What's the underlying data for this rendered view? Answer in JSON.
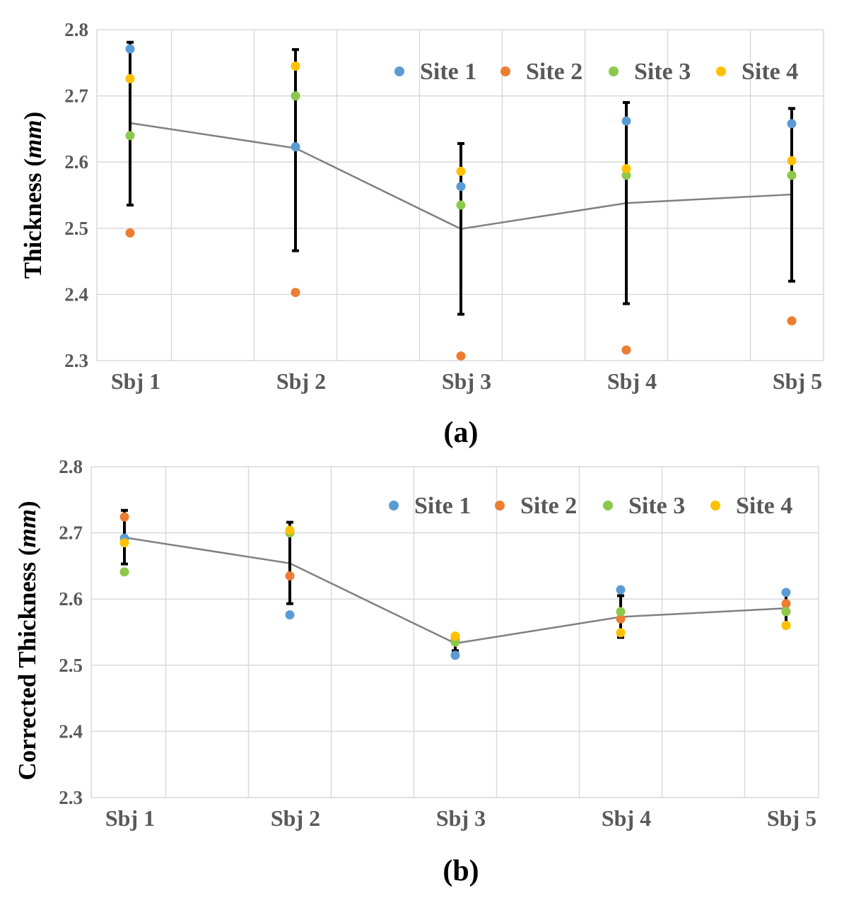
{
  "colors": {
    "site1": "#5B9BD5",
    "site2": "#ED7D31",
    "site3": "#8CC84B",
    "site4": "#FFC000",
    "mean_line": "#808080",
    "error_bar": "#000000",
    "grid": "#D9D9D9"
  },
  "chart_data": [
    {
      "type": "scatter",
      "panel_label": "(a)",
      "title": "",
      "xlabel": "",
      "ylabel": "Thickness",
      "ylabel_unit": "mm",
      "ylim": [
        2.3,
        2.8
      ],
      "yticks": [
        "2.3",
        "2.4",
        "2.5",
        "2.6",
        "2.7",
        "2.8"
      ],
      "categories": [
        "Sbj 1",
        "Sbj 2",
        "Sbj 3",
        "Sbj 4",
        "Sbj 5"
      ],
      "legend_position": "top-right",
      "series": [
        {
          "name": "Site 1",
          "values": [
            2.771,
            2.623,
            2.563,
            2.662,
            2.658
          ]
        },
        {
          "name": "Site 2",
          "values": [
            2.493,
            2.403,
            2.307,
            2.316,
            2.36
          ]
        },
        {
          "name": "Site 3",
          "values": [
            2.64,
            2.7,
            2.535,
            2.58,
            2.58
          ]
        },
        {
          "name": "Site 4",
          "values": [
            2.726,
            2.745,
            2.586,
            2.59,
            2.602
          ]
        }
      ],
      "mean": [
        2.659,
        2.621,
        2.499,
        2.538,
        2.551
      ],
      "error_low": [
        2.535,
        2.466,
        2.37,
        2.386,
        2.42
      ],
      "error_high": [
        2.781,
        2.77,
        2.628,
        2.69,
        2.681
      ]
    },
    {
      "type": "scatter",
      "panel_label": "(b)",
      "title": "",
      "xlabel": "",
      "ylabel": "Corrected Thickness",
      "ylabel_unit": "mm",
      "ylim": [
        2.3,
        2.8
      ],
      "yticks": [
        "2.3",
        "2.4",
        "2.5",
        "2.6",
        "2.7",
        "2.8"
      ],
      "categories": [
        "Sbj 1",
        "Sbj 2",
        "Sbj 3",
        "Sbj 4",
        "Sbj 5"
      ],
      "legend_position": "top-right",
      "series": [
        {
          "name": "Site 1",
          "values": [
            2.692,
            2.576,
            2.515,
            2.614,
            2.61
          ]
        },
        {
          "name": "Site 2",
          "values": [
            2.724,
            2.635,
            2.538,
            2.57,
            2.593
          ]
        },
        {
          "name": "Site 3",
          "values": [
            2.641,
            2.7,
            2.535,
            2.581,
            2.581
          ]
        },
        {
          "name": "Site 4",
          "values": [
            2.685,
            2.704,
            2.544,
            2.549,
            2.56
          ]
        }
      ],
      "mean": [
        2.693,
        2.654,
        2.533,
        2.573,
        2.586
      ],
      "error_low": [
        2.653,
        2.593,
        2.522,
        2.542,
        2.563
      ],
      "error_high": [
        2.734,
        2.716,
        2.544,
        2.605,
        2.608
      ]
    }
  ]
}
